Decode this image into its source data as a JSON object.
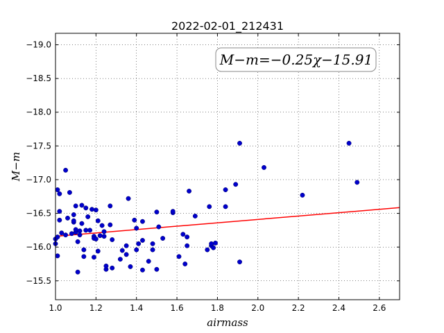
{
  "chart_data": {
    "type": "scatter",
    "title": "2022-02-01_212431",
    "xlabel": "airmass",
    "ylabel": "M−m",
    "xlim": [
      1.0,
      2.7
    ],
    "ylim": [
      -19.17,
      -15.22
    ],
    "y_inverted": true,
    "grid": true,
    "x_ticks": [
      1.0,
      1.2,
      1.4,
      1.6,
      1.8,
      2.0,
      2.2,
      2.4,
      2.6
    ],
    "x_tick_labels": [
      "1.0",
      "1.2",
      "1.4",
      "1.6",
      "1.8",
      "2.0",
      "2.2",
      "2.4",
      "2.6"
    ],
    "y_ticks": [
      -15.5,
      -16.0,
      -16.5,
      -17.0,
      -17.5,
      -18.0,
      -18.5,
      -19.0
    ],
    "y_tick_labels": [
      "−15.5",
      "−16.0",
      "−16.5",
      "−17.0",
      "−17.5",
      "−18.0",
      "−18.5",
      "−19.0"
    ],
    "annotation": "M−m=−0.25χ−15.91",
    "fit": {
      "slope": -0.25,
      "intercept": -15.91,
      "color": "#ff0000"
    },
    "point_color": "#0000cc",
    "points": [
      [
        1.0,
        -16.05
      ],
      [
        1.0,
        -16.12
      ],
      [
        1.01,
        -16.15
      ],
      [
        1.01,
        -16.85
      ],
      [
        1.01,
        -15.87
      ],
      [
        1.02,
        -16.53
      ],
      [
        1.02,
        -16.4
      ],
      [
        1.02,
        -16.79
      ],
      [
        1.03,
        -16.21
      ],
      [
        1.05,
        -16.18
      ],
      [
        1.05,
        -17.14
      ],
      [
        1.06,
        -16.43
      ],
      [
        1.07,
        -16.81
      ],
      [
        1.08,
        -16.2
      ],
      [
        1.09,
        -16.37
      ],
      [
        1.09,
        -16.48
      ],
      [
        1.09,
        -16.39
      ],
      [
        1.1,
        -16.22
      ],
      [
        1.1,
        -16.61
      ],
      [
        1.1,
        -16.26
      ],
      [
        1.11,
        -15.63
      ],
      [
        1.11,
        -16.08
      ],
      [
        1.12,
        -16.24
      ],
      [
        1.12,
        -16.18
      ],
      [
        1.13,
        -16.35
      ],
      [
        1.13,
        -16.62
      ],
      [
        1.14,
        -15.86
      ],
      [
        1.14,
        -15.96
      ],
      [
        1.15,
        -16.25
      ],
      [
        1.15,
        -16.58
      ],
      [
        1.16,
        -16.45
      ],
      [
        1.17,
        -16.25
      ],
      [
        1.18,
        -16.56
      ],
      [
        1.19,
        -16.16
      ],
      [
        1.19,
        -16.13
      ],
      [
        1.19,
        -15.85
      ],
      [
        1.2,
        -16.12
      ],
      [
        1.2,
        -16.55
      ],
      [
        1.21,
        -15.94
      ],
      [
        1.21,
        -16.39
      ],
      [
        1.22,
        -16.17
      ],
      [
        1.23,
        -16.32
      ],
      [
        1.24,
        -16.16
      ],
      [
        1.24,
        -16.23
      ],
      [
        1.25,
        -15.67
      ],
      [
        1.25,
        -15.72
      ],
      [
        1.27,
        -16.33
      ],
      [
        1.27,
        -16.61
      ],
      [
        1.28,
        -16.11
      ],
      [
        1.28,
        -15.69
      ],
      [
        1.32,
        -15.82
      ],
      [
        1.33,
        -15.95
      ],
      [
        1.35,
        -15.89
      ],
      [
        1.35,
        -16.02
      ],
      [
        1.36,
        -16.72
      ],
      [
        1.37,
        -15.71
      ],
      [
        1.39,
        -16.4
      ],
      [
        1.4,
        -16.28
      ],
      [
        1.4,
        -15.96
      ],
      [
        1.41,
        -16.05
      ],
      [
        1.43,
        -15.66
      ],
      [
        1.43,
        -16.1
      ],
      [
        1.43,
        -16.38
      ],
      [
        1.46,
        -15.79
      ],
      [
        1.48,
        -16.05
      ],
      [
        1.48,
        -15.96
      ],
      [
        1.5,
        -16.52
      ],
      [
        1.5,
        -15.67
      ],
      [
        1.51,
        -16.3
      ],
      [
        1.53,
        -16.13
      ],
      [
        1.58,
        -16.51
      ],
      [
        1.58,
        -16.53
      ],
      [
        1.61,
        -15.86
      ],
      [
        1.63,
        -16.19
      ],
      [
        1.64,
        -15.75
      ],
      [
        1.65,
        -16.02
      ],
      [
        1.65,
        -16.15
      ],
      [
        1.66,
        -16.83
      ],
      [
        1.69,
        -16.46
      ],
      [
        1.75,
        -15.96
      ],
      [
        1.76,
        -16.6
      ],
      [
        1.77,
        -16.02
      ],
      [
        1.77,
        -16.05
      ],
      [
        1.78,
        -15.99
      ],
      [
        1.79,
        -16.06
      ],
      [
        1.84,
        -16.85
      ],
      [
        1.84,
        -16.6
      ],
      [
        1.89,
        -16.93
      ],
      [
        1.91,
        -15.78
      ],
      [
        1.91,
        -17.54
      ],
      [
        2.03,
        -17.18
      ],
      [
        2.22,
        -16.77
      ],
      [
        2.45,
        -17.54
      ],
      [
        2.49,
        -16.96
      ]
    ]
  }
}
